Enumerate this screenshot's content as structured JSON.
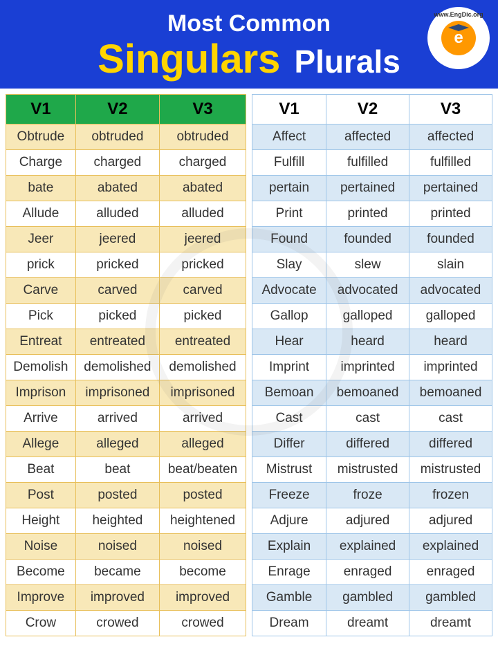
{
  "header": {
    "line1": "Most Common",
    "singulars": "Singulars",
    "plurals": "Plurals",
    "logo_text_top": "www.EngDic.org",
    "logo_letter": "e"
  },
  "left_table": {
    "headers": [
      "V1",
      "V2",
      "V3"
    ],
    "header_bg": "#1fa84a",
    "row_odd_bg": "#f8e8b8",
    "row_even_bg": "#ffffff",
    "border_color": "#e8bf5a",
    "rows": [
      [
        "Obtrude",
        "obtruded",
        "obtruded"
      ],
      [
        "Charge",
        "charged",
        "charged"
      ],
      [
        "bate",
        "abated",
        "abated"
      ],
      [
        "Allude",
        "alluded",
        "alluded"
      ],
      [
        "Jeer",
        "jeered",
        "jeered"
      ],
      [
        "prick",
        "pricked",
        "pricked"
      ],
      [
        "Carve",
        "carved",
        "carved"
      ],
      [
        "Pick",
        "picked",
        "picked"
      ],
      [
        "Entreat",
        "entreated",
        "entreated"
      ],
      [
        "Demolish",
        "demolished",
        "demolished"
      ],
      [
        "Imprison",
        "imprisoned",
        "imprisoned"
      ],
      [
        "Arrive",
        "arrived",
        "arrived"
      ],
      [
        "Allege",
        "alleged",
        "alleged"
      ],
      [
        "Beat",
        "beat",
        "beat/beaten"
      ],
      [
        "Post",
        "posted",
        "posted"
      ],
      [
        "Height",
        "heighted",
        "heightened"
      ],
      [
        "Noise",
        "noised",
        "noised"
      ],
      [
        "Become",
        "became",
        "become"
      ],
      [
        "Improve",
        "improved",
        "improved"
      ],
      [
        "Crow",
        "crowed",
        "crowed"
      ]
    ]
  },
  "right_table": {
    "headers": [
      "V1",
      "V2",
      "V3"
    ],
    "header_bg": "#ffffff",
    "row_odd_bg": "#d9e8f5",
    "row_even_bg": "#ffffff",
    "border_color": "#9ec5e8",
    "rows": [
      [
        "Affect",
        "affected",
        "affected"
      ],
      [
        "Fulfill",
        "fulfilled",
        "fulfilled"
      ],
      [
        "pertain",
        "pertained",
        "pertained"
      ],
      [
        "Print",
        "printed",
        "printed"
      ],
      [
        "Found",
        "founded",
        "founded"
      ],
      [
        "Slay",
        "slew",
        "slain"
      ],
      [
        "Advocate",
        "advocated",
        "advocated"
      ],
      [
        "Gallop",
        "galloped",
        "galloped"
      ],
      [
        "Hear",
        "heard",
        "heard"
      ],
      [
        "Imprint",
        "imprinted",
        "imprinted"
      ],
      [
        "Bemoan",
        "bemoaned",
        "bemoaned"
      ],
      [
        "Cast",
        "cast",
        "cast"
      ],
      [
        "Differ",
        "differed",
        "differed"
      ],
      [
        "Mistrust",
        "mistrusted",
        "mistrusted"
      ],
      [
        "Freeze",
        "froze",
        "frozen"
      ],
      [
        "Adjure",
        "adjured",
        "adjured"
      ],
      [
        "Explain",
        "explained",
        "explained"
      ],
      [
        "Enrage",
        "enraged",
        "enraged"
      ],
      [
        "Gamble",
        "gambled",
        "gambled"
      ],
      [
        "Dream",
        "dreamt",
        "dreamt"
      ]
    ]
  },
  "colors": {
    "header_bg": "#1a3fd4",
    "singulars_color": "#ffd400",
    "plurals_color": "#ffffff"
  }
}
